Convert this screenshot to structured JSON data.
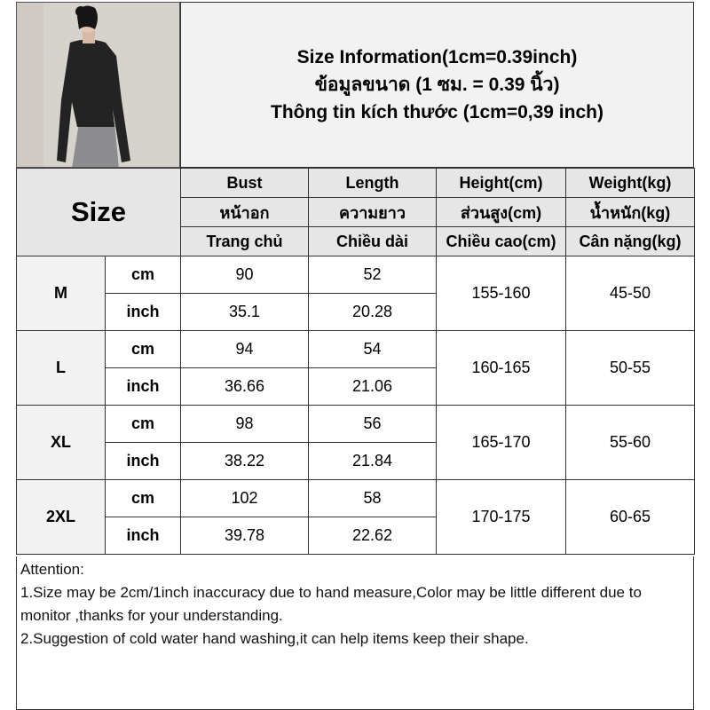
{
  "title": {
    "line1": "Size Information(1cm=0.39inch)",
    "line2": "ข้อมูลขนาด (1 ซม. = 0.39 นิ้ว)",
    "line3": "Thông tin kích thước (1cm=0,39 inch)"
  },
  "table": {
    "size_header": "Size",
    "columns": [
      {
        "en": "Bust",
        "th": "หน้าอก",
        "vi": "Trang chủ"
      },
      {
        "en": "Length",
        "th": "ความยาว",
        "vi": "Chiều dài"
      },
      {
        "en": "Height(cm)",
        "th": "ส่วนสูง(cm)",
        "vi": "Chiều cao(cm)"
      },
      {
        "en": "Weight(kg)",
        "th": "น้ำหนัก(kg)",
        "vi": "Cân nặng(kg)"
      }
    ],
    "unit_cm": "cm",
    "unit_inch": "inch",
    "rows": [
      {
        "size": "M",
        "bust_cm": "90",
        "length_cm": "52",
        "bust_in": "35.1",
        "length_in": "20.28",
        "height": "155-160",
        "weight": "45-50"
      },
      {
        "size": "L",
        "bust_cm": "94",
        "length_cm": "54",
        "bust_in": "36.66",
        "length_in": "21.06",
        "height": "160-165",
        "weight": "50-55"
      },
      {
        "size": "XL",
        "bust_cm": "98",
        "length_cm": "56",
        "bust_in": "38.22",
        "length_in": "21.84",
        "height": "165-170",
        "weight": "55-60"
      },
      {
        "size": "2XL",
        "bust_cm": "102",
        "length_cm": "58",
        "bust_in": "39.78",
        "length_in": "22.62",
        "height": "170-175",
        "weight": "60-65"
      }
    ]
  },
  "notes": {
    "heading": "Attention:",
    "items": [
      "1.Size may be 2cm/1inch inaccuracy due to hand measure,Color may be little different due to monitor ,thanks for your understanding.",
      "2.Suggestion of cold water hand washing,it can help items keep their shape."
    ]
  }
}
